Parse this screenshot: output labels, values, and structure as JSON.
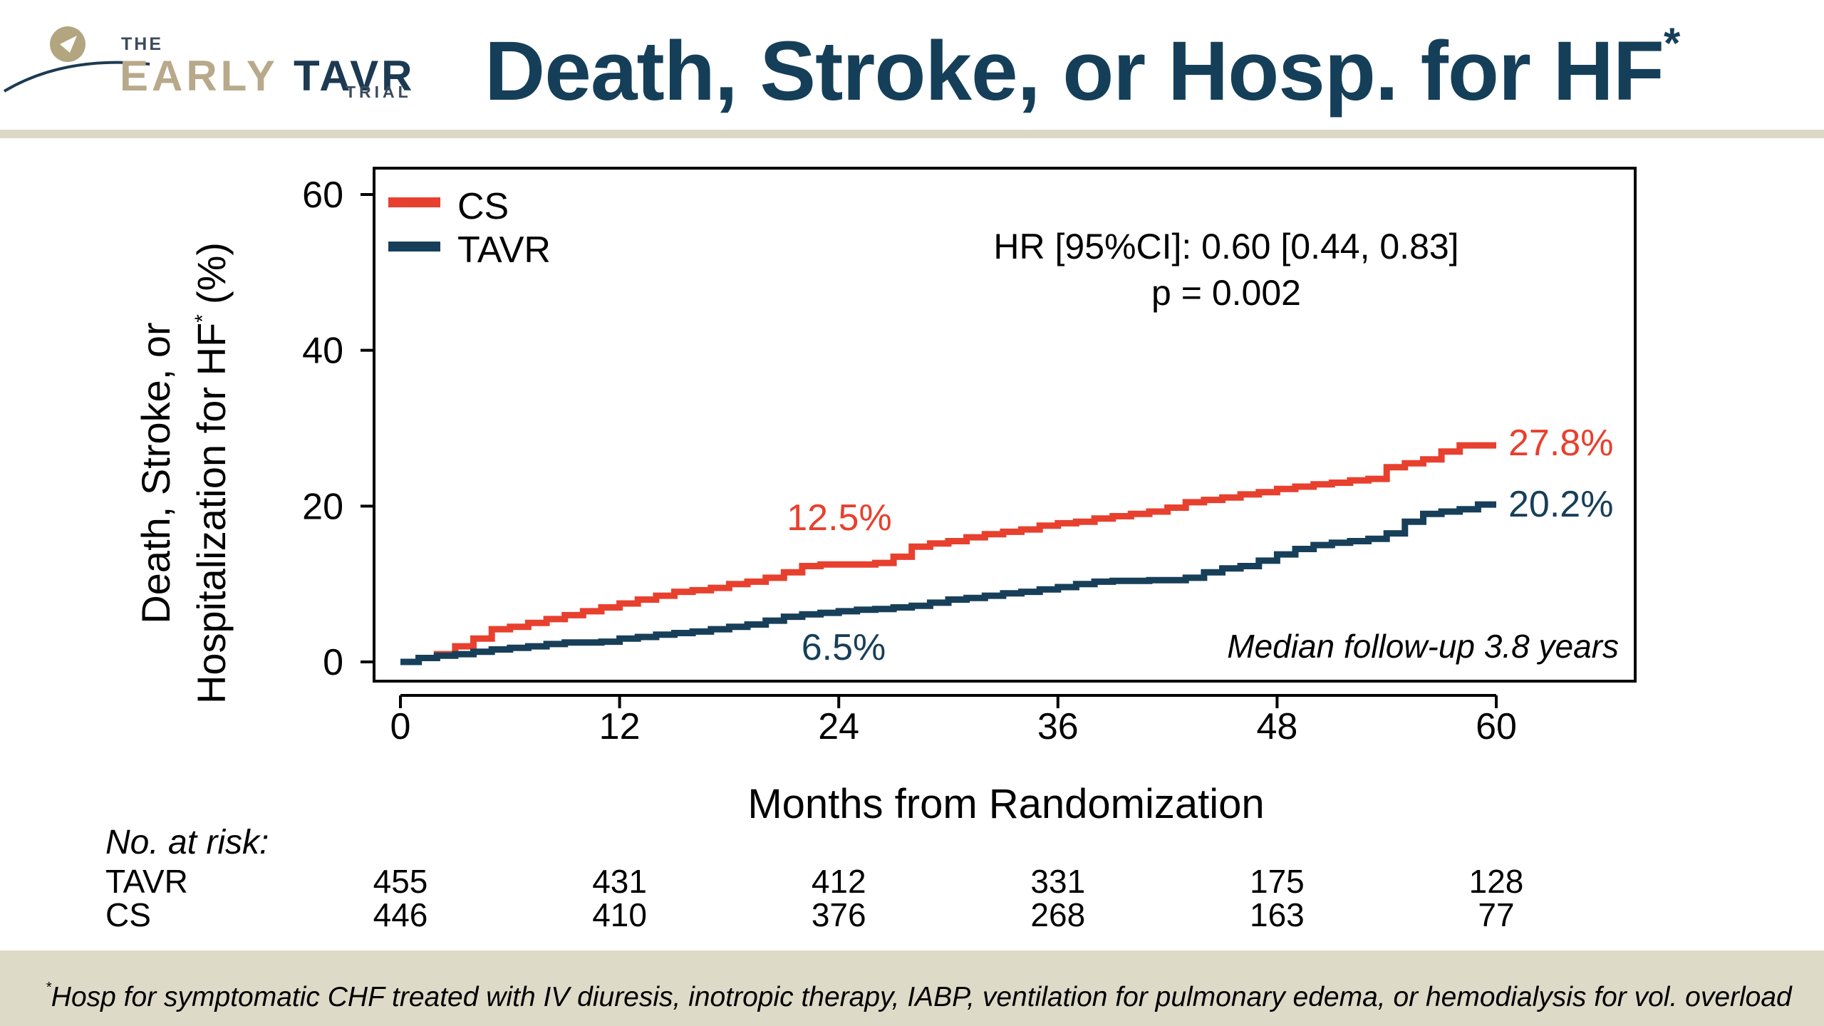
{
  "header": {
    "logo": {
      "the": "THE",
      "early": "EARLY",
      "tavr": "TAVR",
      "trial": "TRIAL"
    },
    "title": "Death, Stroke, or Hosp. for HF",
    "title_mark": "*"
  },
  "colors": {
    "title": "#153f59",
    "cs": "#e8402e",
    "tavr": "#173f59",
    "rule": "#ddd8c5",
    "footer_bg": "#dedac8"
  },
  "chart_data": {
    "type": "line",
    "title": "",
    "ylabel_line1": "Death, Stroke, or",
    "ylabel_line2": "Hospitalization for HF",
    "ylabel_mark": "*",
    "ylabel_unit": "(%)",
    "xlabel": "Months from Randomization",
    "xlim": [
      0,
      60
    ],
    "ylim": [
      0,
      60
    ],
    "xticks": [
      0,
      12,
      24,
      36,
      48,
      60
    ],
    "yticks": [
      0,
      20,
      40,
      60
    ],
    "legend_position": "top-left",
    "series": [
      {
        "name": "CS",
        "color": "#e8402e",
        "end_label": "27.8%",
        "points": [
          [
            0,
            0
          ],
          [
            1,
            0.5
          ],
          [
            2,
            1
          ],
          [
            3,
            2
          ],
          [
            4,
            3
          ],
          [
            5,
            4.2
          ],
          [
            6,
            4.5
          ],
          [
            7,
            5
          ],
          [
            8,
            5.5
          ],
          [
            9,
            6
          ],
          [
            10,
            6.5
          ],
          [
            11,
            7
          ],
          [
            12,
            7.5
          ],
          [
            13,
            8
          ],
          [
            14,
            8.5
          ],
          [
            15,
            9
          ],
          [
            16,
            9.2
          ],
          [
            17,
            9.5
          ],
          [
            18,
            10
          ],
          [
            19,
            10.3
          ],
          [
            20,
            10.8
          ],
          [
            21,
            11.5
          ],
          [
            22,
            12.3
          ],
          [
            23,
            12.5
          ],
          [
            24,
            12.5
          ],
          [
            25,
            12.5
          ],
          [
            26,
            12.7
          ],
          [
            27,
            13.5
          ],
          [
            28,
            14.8
          ],
          [
            29,
            15.2
          ],
          [
            30,
            15.5
          ],
          [
            31,
            16
          ],
          [
            32,
            16.4
          ],
          [
            33,
            16.7
          ],
          [
            34,
            17
          ],
          [
            35,
            17.5
          ],
          [
            36,
            17.8
          ],
          [
            37,
            18
          ],
          [
            38,
            18.4
          ],
          [
            39,
            18.7
          ],
          [
            40,
            19
          ],
          [
            41,
            19.3
          ],
          [
            42,
            19.8
          ],
          [
            43,
            20.5
          ],
          [
            44,
            20.8
          ],
          [
            45,
            21.1
          ],
          [
            46,
            21.5
          ],
          [
            47,
            21.8
          ],
          [
            48,
            22.2
          ],
          [
            49,
            22.5
          ],
          [
            50,
            22.8
          ],
          [
            51,
            23
          ],
          [
            52,
            23.3
          ],
          [
            53,
            23.5
          ],
          [
            54,
            25
          ],
          [
            55,
            25.5
          ],
          [
            56,
            26
          ],
          [
            57,
            27
          ],
          [
            58,
            27.8
          ],
          [
            60,
            27.8
          ]
        ]
      },
      {
        "name": "TAVR",
        "color": "#173f59",
        "end_label": "20.2%",
        "points": [
          [
            0,
            0
          ],
          [
            1,
            0.5
          ],
          [
            2,
            0.8
          ],
          [
            3,
            1
          ],
          [
            4,
            1.3
          ],
          [
            5,
            1.6
          ],
          [
            6,
            1.8
          ],
          [
            7,
            2
          ],
          [
            8,
            2.3
          ],
          [
            9,
            2.5
          ],
          [
            10,
            2.5
          ],
          [
            11,
            2.6
          ],
          [
            12,
            3
          ],
          [
            13,
            3.2
          ],
          [
            14,
            3.5
          ],
          [
            15,
            3.7
          ],
          [
            16,
            3.9
          ],
          [
            17,
            4.2
          ],
          [
            18,
            4.5
          ],
          [
            19,
            4.8
          ],
          [
            20,
            5.3
          ],
          [
            21,
            5.8
          ],
          [
            22,
            6.1
          ],
          [
            23,
            6.3
          ],
          [
            24,
            6.5
          ],
          [
            25,
            6.7
          ],
          [
            26,
            6.8
          ],
          [
            27,
            7
          ],
          [
            28,
            7.2
          ],
          [
            29,
            7.6
          ],
          [
            30,
            8
          ],
          [
            31,
            8.2
          ],
          [
            32,
            8.5
          ],
          [
            33,
            8.8
          ],
          [
            34,
            9
          ],
          [
            35,
            9.3
          ],
          [
            36,
            9.6
          ],
          [
            37,
            10
          ],
          [
            38,
            10.3
          ],
          [
            39,
            10.4
          ],
          [
            40,
            10.4
          ],
          [
            41,
            10.5
          ],
          [
            42,
            10.5
          ],
          [
            43,
            10.8
          ],
          [
            44,
            11.5
          ],
          [
            45,
            12
          ],
          [
            46,
            12.3
          ],
          [
            47,
            13
          ],
          [
            48,
            13.8
          ],
          [
            49,
            14.5
          ],
          [
            50,
            15
          ],
          [
            51,
            15.3
          ],
          [
            52,
            15.5
          ],
          [
            53,
            15.8
          ],
          [
            54,
            16.5
          ],
          [
            55,
            18
          ],
          [
            56,
            19
          ],
          [
            57,
            19.3
          ],
          [
            58,
            19.6
          ],
          [
            59,
            20.2
          ],
          [
            60,
            20.2
          ]
        ]
      }
    ],
    "annotations": {
      "hr": "HR [95%CI]: 0.60 [0.44, 0.83]",
      "p": "p = 0.002",
      "cs_24": "12.5%",
      "tavr_24": "6.5%",
      "median": "Median follow-up 3.8 years"
    },
    "risk_table": {
      "header": "No. at risk:",
      "rows": [
        {
          "label": "TAVR",
          "values": [
            "455",
            "431",
            "412",
            "331",
            "175",
            "128"
          ]
        },
        {
          "label": "CS",
          "values": [
            "446",
            "410",
            "376",
            "268",
            "163",
            "77"
          ]
        }
      ]
    }
  },
  "footer": {
    "mark": "*",
    "note": "Hosp for symptomatic CHF treated with IV diuresis, inotropic therapy, IABP, ventilation for pulmonary edema, or hemodialysis for vol. overload"
  }
}
